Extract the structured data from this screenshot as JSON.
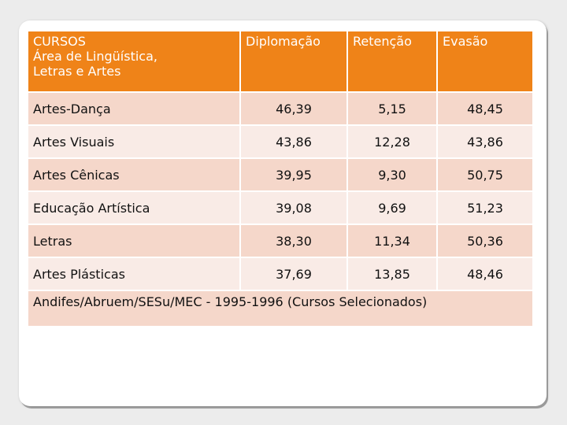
{
  "table": {
    "header": {
      "course_lines": [
        "CURSOS",
        "Área de Lingüística,",
        "Letras e Artes"
      ],
      "col1": "Diplomação",
      "col2": "Retenção",
      "col3": "Evasão"
    },
    "rows": [
      {
        "course": "Artes-Dança",
        "diplomacao": "46,39",
        "retencao": "5,15",
        "evasao": "48,45"
      },
      {
        "course": "Artes Visuais",
        "diplomacao": "43,86",
        "retencao": "12,28",
        "evasao": "43,86"
      },
      {
        "course": "Artes Cênicas",
        "diplomacao": "39,95",
        "retencao": "9,30",
        "evasao": "50,75"
      },
      {
        "course": "Educação Artística",
        "diplomacao": "39,08",
        "retencao": "9,69",
        "evasao": "51,23"
      },
      {
        "course": "Letras",
        "diplomacao": "38,30",
        "retencao": "11,34",
        "evasao": "50,36"
      },
      {
        "course": "Artes Plásticas",
        "diplomacao": "37,69",
        "retencao": "13,85",
        "evasao": "48,46"
      }
    ],
    "source": "Andifes/Abruem/SESu/MEC - 1995-1996 (Cursos Selecionados)"
  },
  "colors": {
    "header_bg": "#ef8318",
    "row_odd_bg": "#f5d7ca",
    "row_even_bg": "#f9ebe6"
  }
}
